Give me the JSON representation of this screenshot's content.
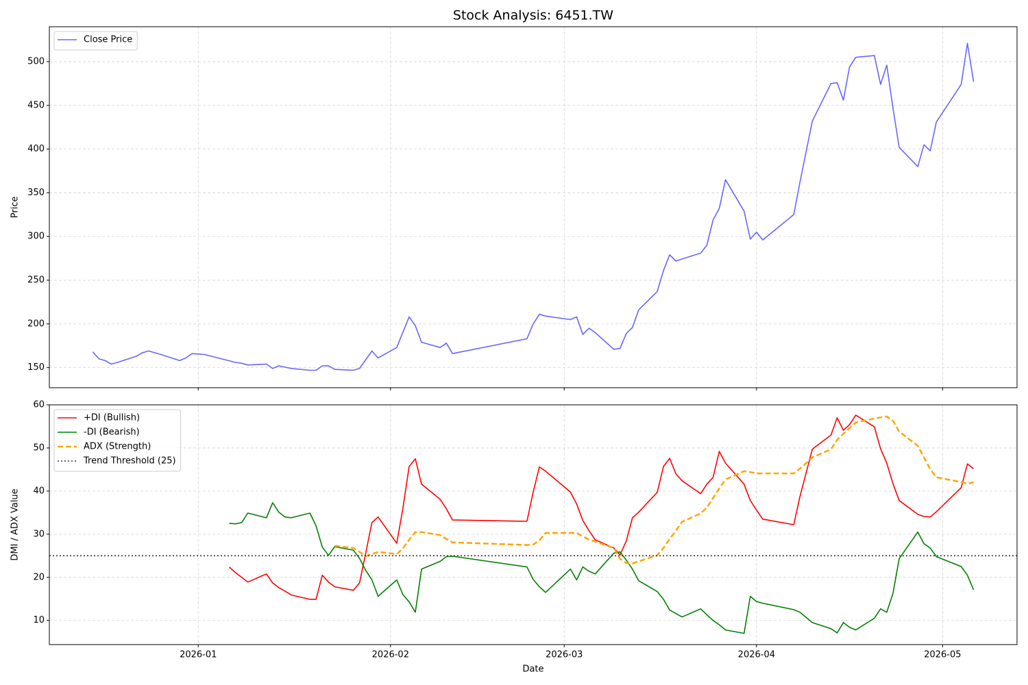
{
  "chart_data": [
    {
      "type": "line",
      "title": "Stock Analysis: 6451.TW",
      "y_label": "Price",
      "grid": true,
      "legend": "upper left",
      "x": [
        20437,
        20438,
        20439,
        20440,
        20441,
        20444,
        20445,
        20446,
        20448,
        20451,
        20452,
        20453,
        20455,
        20460,
        20461,
        20462,
        20465,
        20466,
        20467,
        20469,
        20472,
        20473,
        20474,
        20475,
        20476,
        20479,
        20480,
        20482,
        20483,
        20486,
        20488,
        20489,
        20490,
        20493,
        20494,
        20495,
        20507,
        20508,
        20509,
        20510,
        20514,
        20515,
        20516,
        20517,
        20518,
        20521,
        20522,
        20523,
        20524,
        20525,
        20528,
        20529,
        20530,
        20531,
        20535,
        20536,
        20537,
        20538,
        20539,
        20542,
        20543,
        20544,
        20545,
        20550,
        20551,
        20553,
        20556,
        20557,
        20558,
        20559,
        20560,
        20563,
        20564,
        20565,
        20566,
        20567,
        20570,
        20571,
        20572,
        20573,
        20577,
        20578,
        20579
      ],
      "series": [
        {
          "name": "Close Price",
          "color": "#6666ff",
          "values": [
            168,
            160,
            158,
            154,
            156,
            163,
            167,
            169,
            165,
            158,
            161,
            166,
            165,
            156,
            155,
            153,
            154,
            149,
            152,
            149,
            147,
            147,
            152,
            152,
            148,
            147,
            149,
            169,
            161,
            173,
            208,
            198,
            179,
            173,
            178,
            166,
            183,
            200,
            211,
            209,
            205,
            208,
            188,
            195,
            190,
            171,
            172,
            189,
            196,
            216,
            237,
            261,
            279,
            272,
            281,
            290,
            319,
            332,
            365,
            329,
            297,
            305,
            296,
            325,
            362,
            432,
            475,
            476,
            456,
            494,
            505,
            507,
            474,
            496,
            447,
            402,
            380,
            405,
            398,
            431,
            474,
            521,
            477
          ]
        }
      ],
      "ylim": [
        127,
        540
      ],
      "yticks": [
        150,
        200,
        250,
        300,
        350,
        400,
        450,
        500
      ]
    },
    {
      "type": "line",
      "x_label": "Date",
      "y_label": "DMI / ADX Value",
      "grid": true,
      "legend": "upper left",
      "xlim": [
        20430,
        20586
      ],
      "xticks": [
        {
          "value": 20454,
          "label": "2026-01"
        },
        {
          "value": 20485,
          "label": "2026-02"
        },
        {
          "value": 20513,
          "label": "2026-03"
        },
        {
          "value": 20544,
          "label": "2026-04"
        },
        {
          "value": 20574,
          "label": "2026-05"
        }
      ],
      "x": [
        20459,
        20460,
        20461,
        20462,
        20465,
        20466,
        20467,
        20468,
        20469,
        20472,
        20473,
        20474,
        20475,
        20476,
        20479,
        20480,
        20481,
        20482,
        20483,
        20486,
        20487,
        20488,
        20489,
        20490,
        20493,
        20494,
        20495,
        20507,
        20508,
        20509,
        20510,
        20514,
        20515,
        20516,
        20517,
        20518,
        20521,
        20522,
        20523,
        20524,
        20525,
        20528,
        20529,
        20530,
        20531,
        20532,
        20535,
        20536,
        20537,
        20538,
        20539,
        20542,
        20543,
        20544,
        20545,
        20550,
        20551,
        20553,
        20556,
        20557,
        20558,
        20559,
        20560,
        20563,
        20564,
        20565,
        20566,
        20567,
        20570,
        20571,
        20572,
        20573,
        20577,
        20578,
        20579
      ],
      "series": [
        {
          "name": "+DI (Bullish)",
          "color": "#ff0000",
          "style": "solid",
          "values": [
            22.4,
            21.1,
            20,
            18.9,
            20.8,
            18.7,
            17.6,
            16.8,
            15.9,
            14.9,
            14.9,
            20.5,
            18.9,
            17.8,
            17,
            18.7,
            25.6,
            32.7,
            34,
            27.9,
            36,
            45.7,
            47.5,
            41.6,
            38.1,
            35.9,
            33.3,
            33,
            39.8,
            45.6,
            44.6,
            39.8,
            37,
            33.2,
            30.8,
            28.7,
            26.8,
            25.2,
            28.4,
            33.8,
            35.1,
            39.7,
            45.7,
            47.6,
            44,
            42.4,
            39.4,
            41.6,
            43.2,
            49.2,
            46.5,
            41.6,
            37.8,
            35.6,
            33.5,
            32.2,
            38.7,
            49.7,
            53,
            57,
            54.1,
            55.4,
            57.6,
            54.9,
            49.8,
            46.5,
            41.7,
            37.8,
            34.6,
            34.1,
            34,
            35.2,
            40.8,
            46.3,
            45.2
          ]
        },
        {
          "name": "-DI (Bearish)",
          "color": "#008000",
          "style": "solid",
          "values": [
            32.5,
            32.4,
            32.7,
            34.9,
            33.8,
            37.3,
            35.1,
            34,
            33.8,
            34.9,
            31.9,
            27,
            25.1,
            27.1,
            26.3,
            24.4,
            21.6,
            19.4,
            15.6,
            19.4,
            16,
            14.3,
            11.9,
            21.9,
            23.7,
            24.8,
            24.9,
            22.4,
            19.5,
            17.8,
            16.5,
            21.9,
            19.4,
            22.4,
            21.4,
            20.8,
            25.6,
            25.9,
            24,
            21.9,
            19.2,
            16.7,
            14.9,
            12.4,
            11.6,
            10.8,
            12.7,
            11.3,
            10,
            9,
            7.8,
            7,
            15.6,
            14.4,
            14,
            12.5,
            11.9,
            9.5,
            8.1,
            7.1,
            9.5,
            8.4,
            7.8,
            10.5,
            12.7,
            11.9,
            16.3,
            24.3,
            30.5,
            27.8,
            26.8,
            24.8,
            22.5,
            20.5,
            17.1
          ]
        },
        {
          "name": "ADX (Strength)",
          "color": "#ffa500",
          "style": "dashed",
          "values": [
            null,
            null,
            null,
            null,
            null,
            null,
            null,
            null,
            null,
            null,
            null,
            null,
            null,
            27.3,
            26.8,
            25.9,
            24.9,
            25.4,
            25.9,
            25.4,
            26.7,
            28.7,
            30.5,
            30.5,
            29.8,
            28.9,
            28.1,
            27.5,
            27.6,
            28.6,
            30.3,
            30.3,
            30.3,
            29.5,
            28.7,
            28.3,
            26.8,
            24.3,
            23.3,
            23.2,
            23.7,
            25.1,
            26.8,
            28.9,
            30.8,
            32.9,
            34.8,
            36.2,
            38.4,
            40.6,
            42.7,
            44.6,
            44.4,
            44.1,
            44.1,
            44.1,
            45.2,
            47.8,
            49.7,
            51.9,
            53.3,
            54.6,
            55.9,
            56.8,
            57.1,
            57.3,
            56.3,
            53.8,
            50.5,
            47.8,
            45.1,
            43.2,
            42.1,
            41.7,
            42.1
          ]
        }
      ],
      "threshold": {
        "name": "Trend Threshold (25)",
        "value": 25,
        "color": "#333333",
        "style": "dotted"
      },
      "ylim": [
        4.4,
        60
      ],
      "yticks": [
        10,
        20,
        30,
        40,
        50,
        60
      ]
    }
  ]
}
